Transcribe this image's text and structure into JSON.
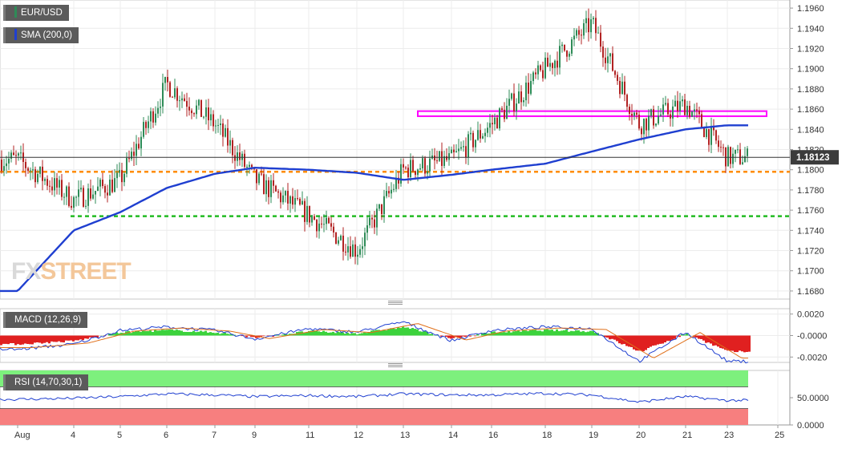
{
  "panels": {
    "main": {
      "tag": "EUR/USD",
      "sma_tag": "SMA (200,0)",
      "last_price": "1.18123",
      "yticks": [
        "1.1960",
        "1.1940",
        "1.1920",
        "1.1900",
        "1.1880",
        "1.1860",
        "1.1840",
        "1.1820",
        "1.1800",
        "1.1780",
        "1.1760",
        "1.1740",
        "1.1720",
        "1.1700",
        "1.1680"
      ]
    },
    "macd": {
      "tag": "MACD (12,26,9)",
      "yticks": [
        "0.0020",
        "-0.0000",
        "-0.0020"
      ]
    },
    "rsi": {
      "tag": "RSI (14,70,30,1)",
      "yticks": [
        "50.0000",
        "0.0000"
      ]
    }
  },
  "xaxis": {
    "labels": [
      "Aug",
      "4",
      "5",
      "6",
      "7",
      "9",
      "11",
      "12",
      "13",
      "14",
      "16",
      "18",
      "19",
      "20",
      "21",
      "23",
      "25"
    ]
  },
  "watermark": {
    "text_a": "FX",
    "text_b": "STREET"
  },
  "colors": {
    "up": "#2e8b57",
    "down": "#b22222",
    "sma": "#1f3fd0",
    "orange_level": "#ff8c00",
    "green_level": "#22bb22",
    "zone": "#ff00ff",
    "macd_pos": "#3cd23c",
    "macd_neg": "#e02020",
    "rsi_top": "#7df07d",
    "rsi_bottom": "#f77f7f"
  },
  "chart_data": [
    {
      "type": "line",
      "title": "EUR/USD",
      "series": [
        {
          "name": "EUR/USD",
          "x": [
            "Aug",
            "4",
            "5",
            "6",
            "7",
            "9",
            "11",
            "12",
            "13",
            "14",
            "16",
            "18",
            "19",
            "20",
            "21",
            "23"
          ],
          "values": [
            1.181,
            1.177,
            1.179,
            1.1885,
            1.1845,
            1.179,
            1.1755,
            1.172,
            1.18,
            1.181,
            1.1845,
            1.19,
            1.1945,
            1.1845,
            1.1865,
            1.1812
          ]
        },
        {
          "name": "SMA (200,0)",
          "x": [
            "Aug",
            "4",
            "5",
            "6",
            "7",
            "9",
            "11",
            "12",
            "13",
            "14",
            "16",
            "18",
            "19",
            "20",
            "21",
            "23"
          ],
          "values": [
            1.168,
            1.174,
            1.1758,
            1.1782,
            1.1796,
            1.1802,
            1.18,
            1.1797,
            1.179,
            1.1795,
            1.18,
            1.1806,
            1.1818,
            1.183,
            1.184,
            1.1844
          ]
        }
      ],
      "levels": [
        1.1798,
        1.1754
      ],
      "zone": [
        1.1853,
        1.1858
      ],
      "last_price": 1.18123,
      "ylim": [
        1.1672,
        1.1968
      ],
      "grid": true
    },
    {
      "type": "bar",
      "title": "MACD (12,26,9)",
      "x": [
        "Aug",
        "4",
        "5",
        "6",
        "7",
        "9",
        "11",
        "12",
        "13",
        "14",
        "16",
        "18",
        "19",
        "20",
        "21",
        "23"
      ],
      "histogram": [
        -0.0008,
        -0.0005,
        0.0003,
        0.0005,
        0.0003,
        -0.0002,
        0.0004,
        0.0002,
        0.0008,
        -0.0003,
        0.0003,
        0.0005,
        0.0004,
        -0.0015,
        0.0002,
        -0.0015
      ],
      "ylim": [
        -0.0025,
        0.0025
      ]
    },
    {
      "type": "line",
      "title": "RSI (14,70,30,1)",
      "x": [
        "Aug",
        "4",
        "5",
        "6",
        "7",
        "9",
        "11",
        "12",
        "13",
        "14",
        "16",
        "18",
        "19",
        "20",
        "21",
        "23"
      ],
      "values": [
        47,
        49,
        52,
        57,
        55,
        52,
        54,
        52,
        57,
        55,
        55,
        58,
        55,
        42,
        52,
        45
      ],
      "bands": [
        70,
        30
      ],
      "ylim": [
        0,
        100
      ]
    }
  ]
}
